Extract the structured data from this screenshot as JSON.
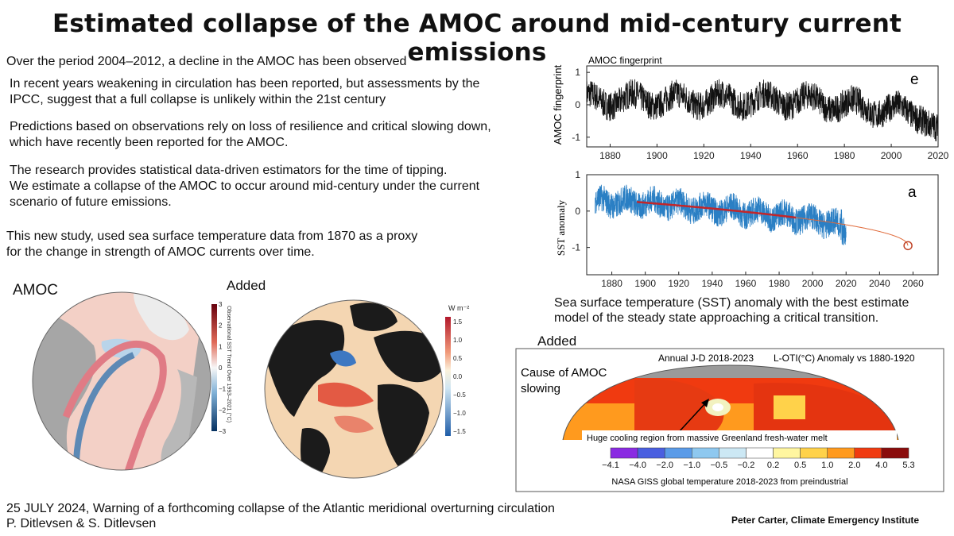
{
  "title": "Estimated collapse of the AMOC around mid-century current emissions",
  "paragraphs": {
    "p1": "Over the period 2004–2012, a decline in the AMOC has been observed",
    "p2a": "In recent years weakening in circulation has been reported, but assessments by the",
    "p2b": "IPCC, suggest that a full collapse is unlikely within the 21st century",
    "p3a": "Predictions based on observations rely on loss of resilience and critical slowing down,",
    "p3b": "which have recently been reported for the AMOC.",
    "p4a": "The research provides statistical data-driven estimators for the time of tipping.",
    "p4b": "We estimate a collapse of the AMOC to occur around mid-century under the current",
    "p4c": "scenario of future emissions.",
    "p5a": "This new study, used sea surface temperature data from 1870 as a proxy",
    "p5b": "for the change in strength of AMOC currents over time."
  },
  "maps": {
    "amoc_label": "AMOC",
    "added_label_1": "Added",
    "sst_colorbar_title": "Observational SST Trend Over 1993–2021 (°C)",
    "sst_colorbar_ticks": [
      "3",
      "2",
      "1",
      "0",
      "−1",
      "−2",
      "−3"
    ],
    "flux_unit": "W m⁻²",
    "flux_ticks": [
      "1.5",
      "1.0",
      "0.5",
      "0.0",
      "−0.5",
      "−1.0",
      "−1.5"
    ]
  },
  "chart_e": {
    "panel_letter": "e",
    "title": "AMOC fingerprint",
    "ylabel": "AMOC fingerprint",
    "yticks": [
      "1",
      "0",
      "-1"
    ],
    "xticks": [
      "1880",
      "1900",
      "1920",
      "1940",
      "1960",
      "1980",
      "2000",
      "2020"
    ]
  },
  "chart_a": {
    "panel_letter": "a",
    "ylabel": "SST anomaly",
    "yticks": [
      "1",
      "0",
      "-1"
    ],
    "xticks": [
      "1880",
      "1900",
      "1920",
      "1940",
      "1960",
      "1980",
      "2000",
      "2020",
      "2040",
      "2060"
    ]
  },
  "chart_caption_a": "Sea surface temperature (SST) anomaly with the best estimate",
  "chart_caption_b": "model of the steady state approaching a critical transition.",
  "giss": {
    "added_label_2": "Added",
    "header_left": "Annual J-D 2018-2023",
    "header_right": "L-OTI(°C) Anomaly vs 1880-1920",
    "cause_a": "Cause of AMOC",
    "cause_b": "slowing",
    "cooling_note": "Huge cooling region from massive Greenland fresh-water melt",
    "scale_labels": [
      "−4.1",
      "−4.0",
      "−2.0",
      "−1.0",
      "−0.5",
      "−0.2",
      "0.2",
      "0.5",
      "1.0",
      "2.0",
      "4.0",
      "5.3"
    ],
    "scale_colors": [
      "#8a2be2",
      "#4a5fe0",
      "#5a9be8",
      "#8ec8ef",
      "#cce8f4",
      "#ffffff",
      "#fff6a0",
      "#ffd24a",
      "#ff9a1e",
      "#f03a10",
      "#8a0c0c"
    ],
    "footer": "NASA GISS global temperature 2018-2023 from preindustrial"
  },
  "citation_a": "25 JULY 2024, Warning of a forthcoming collapse of the Atlantic meridional overturning circulation",
  "citation_b": "P. Ditlevsen & S. Ditlevsen",
  "signature": "Peter Carter, Climate Emergency Institute"
}
